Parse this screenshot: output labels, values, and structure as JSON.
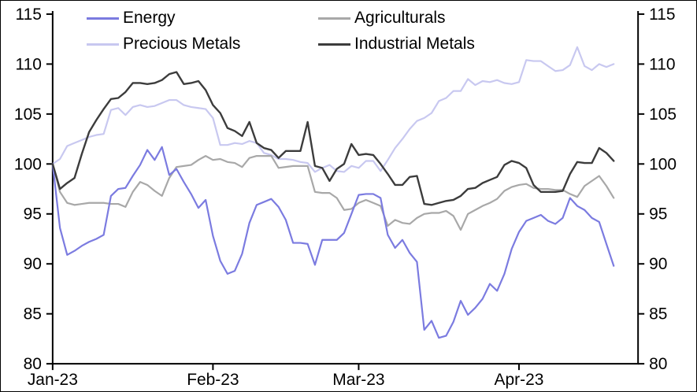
{
  "page": {
    "background": "#ffffff",
    "frame_border_color": "#000000",
    "axis_color": "#000000",
    "text_color": "#000000"
  },
  "chart_data": {
    "type": "line",
    "title": "",
    "xlabel": "",
    "ylabel": "",
    "grid": false,
    "legend_position": "top",
    "x_axis": {
      "ticks": [
        {
          "label": "Jan-23",
          "day": 0
        },
        {
          "label": "Feb-23",
          "day": 22
        },
        {
          "label": "Mar-23",
          "day": 42
        },
        {
          "label": "Apr-23",
          "day": 64
        }
      ],
      "total_days": 78
    },
    "y_axis": {
      "min": 80,
      "max": 115,
      "step": 5,
      "ticks": [
        80,
        85,
        90,
        95,
        100,
        105,
        110,
        115
      ],
      "sides": [
        "left",
        "right"
      ]
    },
    "series": [
      {
        "name": "Energy",
        "color": "#7B7BE0",
        "values": [
          100,
          93.6,
          90.9,
          91.3,
          91.8,
          92.2,
          92.5,
          92.9,
          96.8,
          97.5,
          97.6,
          98.8,
          99.9,
          101.4,
          100.4,
          101.7,
          98.9,
          99.5,
          98.2,
          97,
          95.6,
          96.4,
          92.8,
          90.3,
          89,
          89.3,
          91,
          94.1,
          95.9,
          96.2,
          96.5,
          95.7,
          94.4,
          92.1,
          92.1,
          92,
          89.9,
          92.4,
          92.4,
          92.4,
          93.1,
          95,
          96.9,
          97,
          97,
          96.6,
          92.9,
          91.6,
          92.4,
          91.1,
          90.2,
          83.4,
          84.3,
          82.6,
          82.8,
          84.2,
          86.3,
          84.9,
          85.6,
          86.5,
          88,
          87.3,
          89,
          91.5,
          93.2,
          94.3,
          94.6,
          94.9,
          94.3,
          94,
          94.6,
          96.6,
          95.8,
          95.4,
          94.6,
          94.2,
          92,
          89.8
        ]
      },
      {
        "name": "Precious Metals",
        "color": "#C8C8F0",
        "values": [
          100,
          100.5,
          101.8,
          102.1,
          102.4,
          102.7,
          102.9,
          103,
          105.4,
          105.6,
          104.9,
          105.7,
          105.9,
          105.7,
          105.8,
          106.1,
          106.4,
          106.4,
          105.9,
          105.7,
          105.6,
          105.5,
          104.6,
          101.9,
          101.9,
          102.1,
          102,
          102.3,
          102.1,
          101.1,
          100.9,
          100.5,
          100.5,
          100.4,
          100.2,
          100.1,
          99.2,
          99.6,
          99.9,
          99.3,
          99.2,
          99.8,
          99.6,
          100.3,
          100.3,
          99.3,
          100.4,
          101.6,
          102.5,
          103.5,
          104.3,
          104.6,
          105.1,
          106.3,
          106.6,
          107.3,
          107.3,
          108.5,
          107.9,
          108.3,
          108.2,
          108.4,
          108.1,
          108,
          108.2,
          110.4,
          110.3,
          110.3,
          109.8,
          109.3,
          109.4,
          109.9,
          111.7,
          109.8,
          109.4,
          110,
          109.7,
          110
        ]
      },
      {
        "name": "Agriculturals",
        "color": "#A8A8A8",
        "values": [
          100,
          97.2,
          96.1,
          95.9,
          96,
          96.1,
          96.1,
          96.1,
          96,
          96,
          95.7,
          97.2,
          98.2,
          97.9,
          97.3,
          96.8,
          98.6,
          99.7,
          99.8,
          99.9,
          100.4,
          100.8,
          100.4,
          100.5,
          100.2,
          100.1,
          99.7,
          100.6,
          100.8,
          100.8,
          100.8,
          99.6,
          99.7,
          99.8,
          99.8,
          99.8,
          97.2,
          97.1,
          97.1,
          96.6,
          95.4,
          95.5,
          96.1,
          96.4,
          96.1,
          95.8,
          93.8,
          94.4,
          94.1,
          94,
          94.6,
          95,
          95.1,
          95.1,
          95.3,
          94.8,
          93.4,
          95,
          95.4,
          95.8,
          96.1,
          96.5,
          97.3,
          97.7,
          97.9,
          98,
          97.6,
          97.5,
          97.5,
          97.4,
          97.4,
          97,
          96.7,
          97.8,
          98.3,
          98.8,
          97.8,
          96.6
        ]
      },
      {
        "name": "Industrial Metals",
        "color": "#3C3C3C",
        "values": [
          100,
          97.5,
          98.1,
          98.6,
          101,
          103.2,
          104.4,
          105.5,
          106.5,
          106.6,
          107.2,
          108.1,
          108.1,
          108,
          108.1,
          108.4,
          109,
          109.2,
          108,
          108.1,
          108.3,
          107.4,
          105.9,
          105.1,
          103.6,
          103.3,
          102.8,
          104.2,
          102.1,
          101.6,
          101.4,
          100.6,
          101.3,
          101.3,
          101.3,
          104.2,
          99.8,
          99.6,
          98.3,
          99.5,
          100,
          102,
          100.9,
          101,
          100.9,
          100,
          99,
          97.9,
          97.9,
          98.7,
          98.8,
          96,
          95.9,
          96.1,
          96.3,
          96.4,
          96.8,
          97.5,
          97.6,
          98.1,
          98.4,
          98.7,
          99.9,
          100.3,
          100.1,
          99.6,
          97.9,
          97.2,
          97.2,
          97.2,
          97.3,
          99,
          100.2,
          100.1,
          100.1,
          101.6,
          101.1,
          100.3
        ]
      }
    ]
  }
}
